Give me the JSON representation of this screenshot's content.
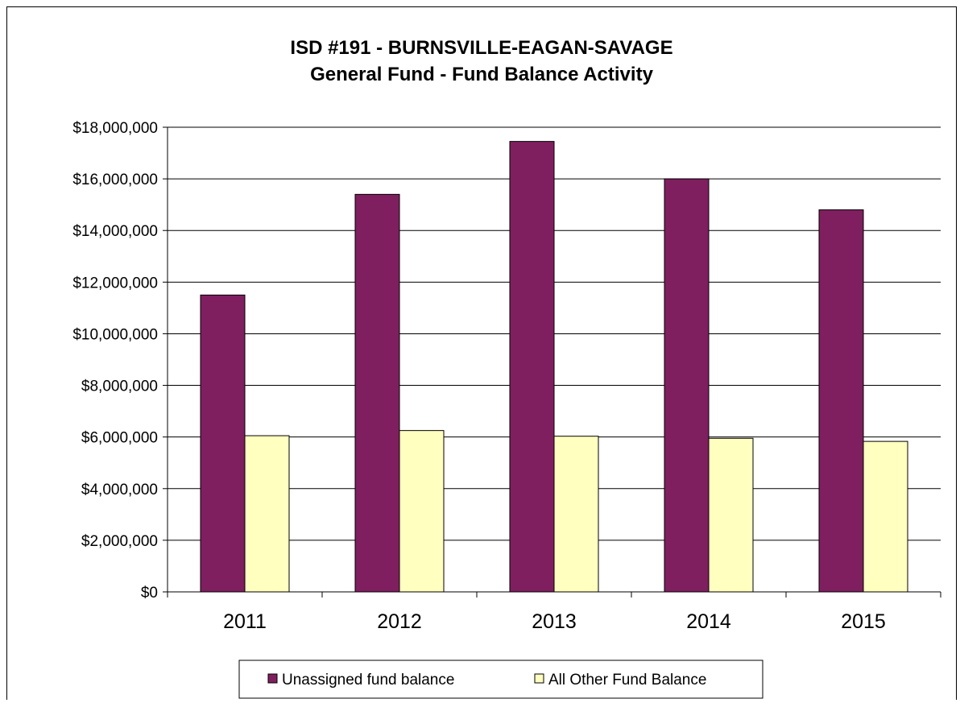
{
  "chart_data": {
    "type": "bar",
    "title": "ISD #191 - BURNSVILLE-EAGAN-SAVAGE",
    "subtitle": "General Fund - Fund Balance Activity",
    "xlabel": "",
    "ylabel": "",
    "categories": [
      "2011",
      "2012",
      "2013",
      "2014",
      "2015"
    ],
    "series": [
      {
        "name": "Unassigned fund balance",
        "color": "#7f1f5f",
        "values": [
          11500000,
          15400000,
          17450000,
          16000000,
          14800000
        ]
      },
      {
        "name": "All Other Fund Balance",
        "color": "#ffffc0",
        "values": [
          6050000,
          6250000,
          6030000,
          5950000,
          5830000
        ]
      }
    ],
    "ylim": [
      0,
      18000000
    ],
    "yticks": [
      0,
      2000000,
      4000000,
      6000000,
      8000000,
      10000000,
      12000000,
      14000000,
      16000000,
      18000000
    ],
    "ytick_labels": [
      "$0",
      "$2,000,000",
      "$4,000,000",
      "$6,000,000",
      "$8,000,000",
      "$10,000,000",
      "$12,000,000",
      "$14,000,000",
      "$16,000,000",
      "$18,000,000"
    ],
    "grid": true,
    "legend_position": "bottom"
  }
}
